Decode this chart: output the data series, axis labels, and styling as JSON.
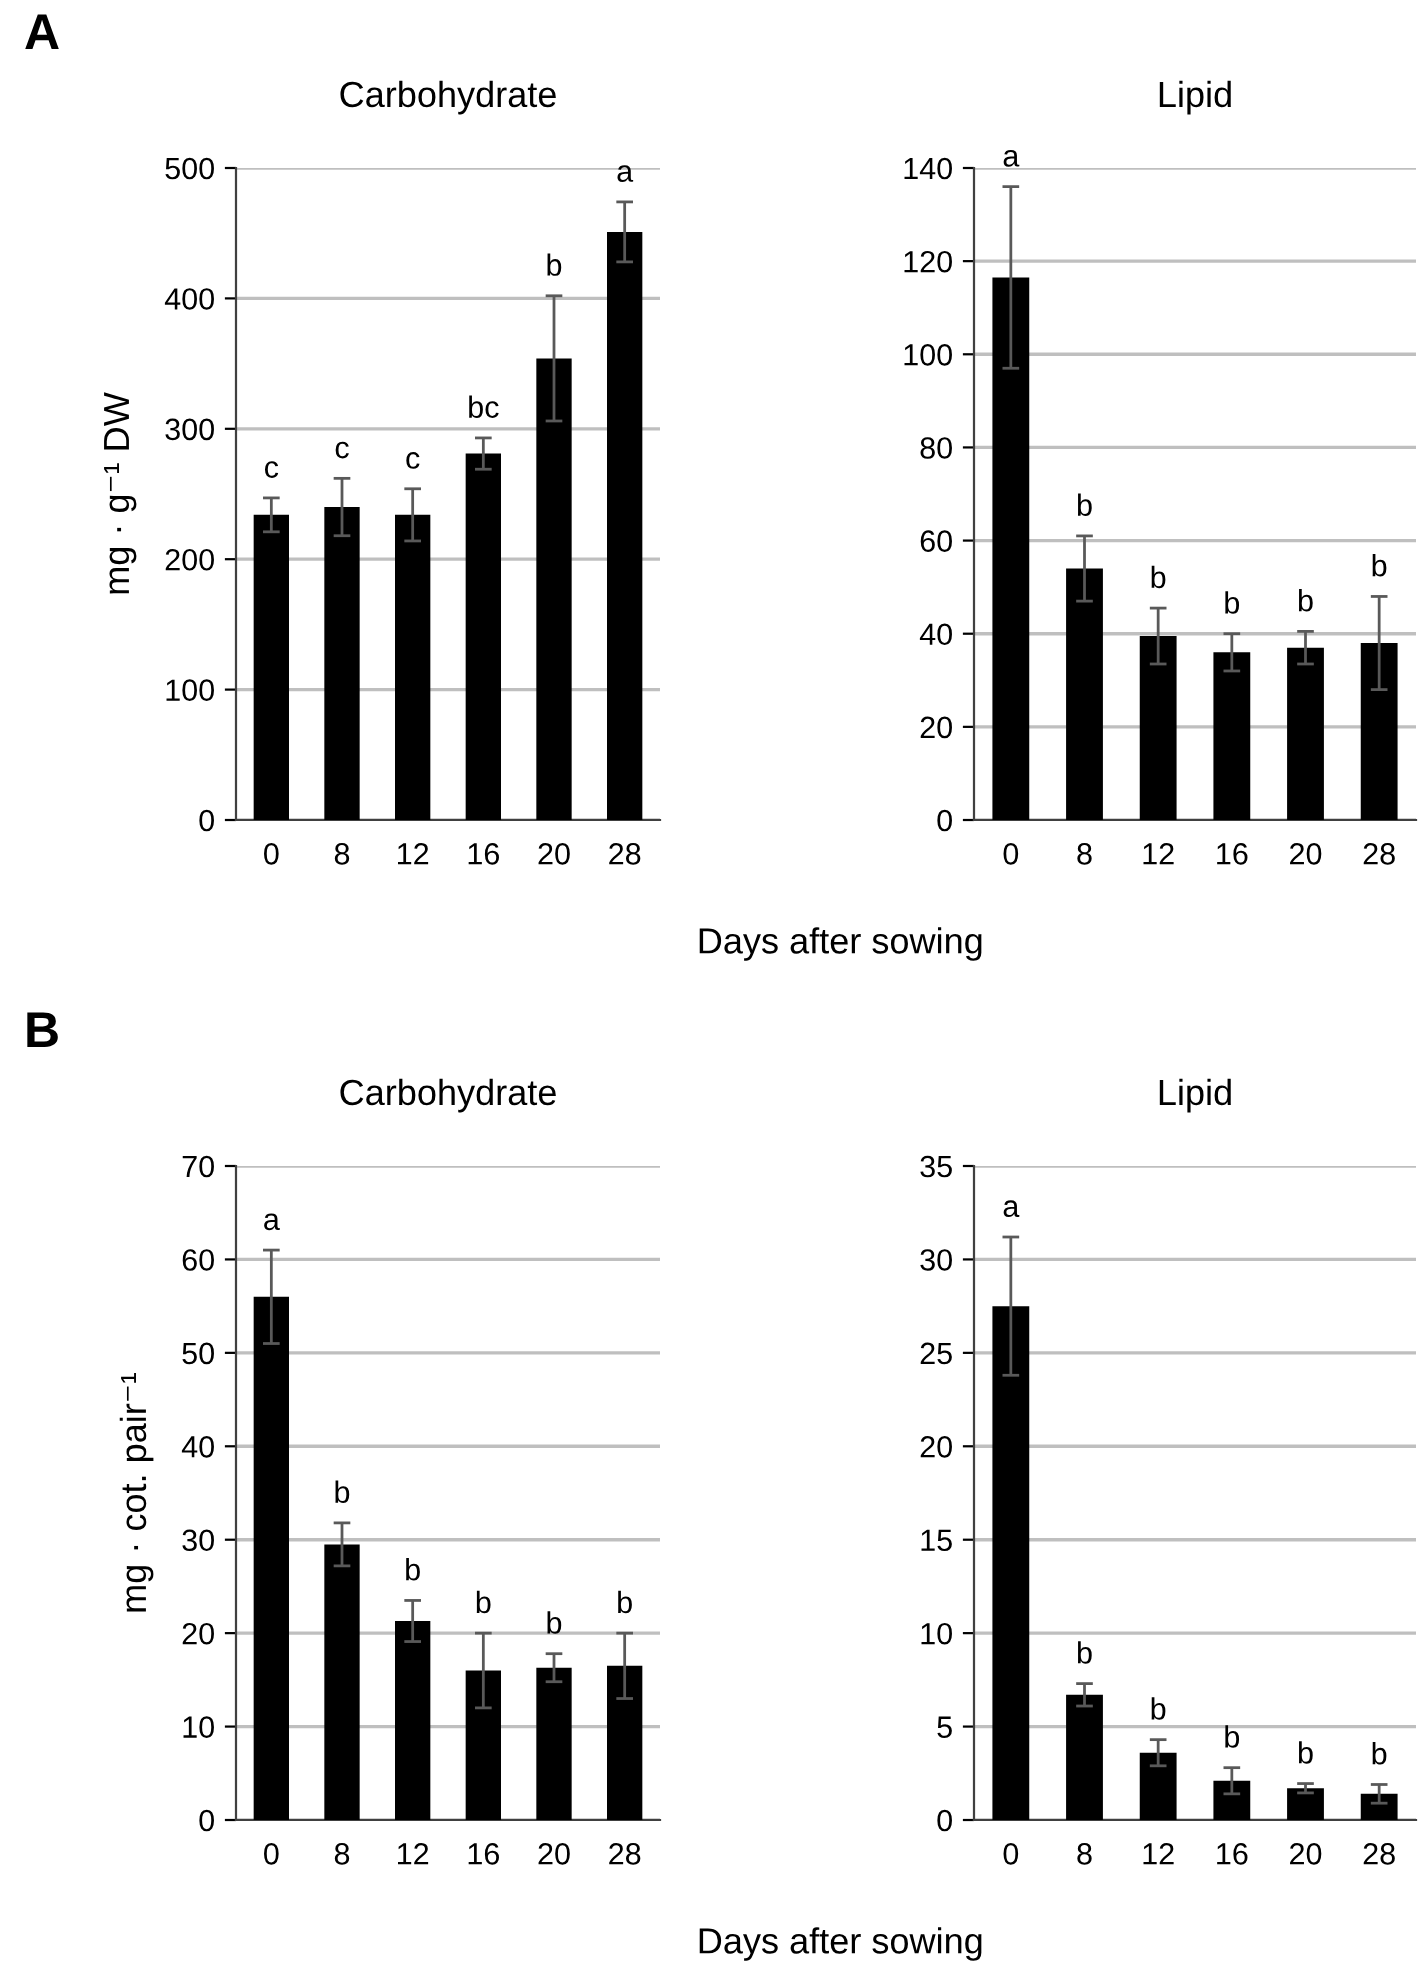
{
  "chart_data": [
    {
      "type": "bar",
      "title": "Carbohydrate",
      "ylabel": "mg · g⁻¹ DW",
      "xlabel": "Days after sowing",
      "categories": [
        "0",
        "8",
        "12",
        "16",
        "20",
        "28"
      ],
      "values": [
        234,
        240,
        234,
        281,
        354,
        451
      ],
      "errors": [
        13,
        22,
        20,
        12,
        48,
        23
      ],
      "color": "#000000",
      "ylim": [
        0,
        500
      ],
      "yticks": [
        0,
        100,
        200,
        300,
        400,
        500
      ],
      "grid": "y",
      "annotations": [
        "A",
        {
          "text": "c",
          "x": "0",
          "y": 247
        },
        {
          "text": "c",
          "x": "8",
          "y": 262
        },
        {
          "text": "c",
          "x": "12",
          "y": 254
        },
        {
          "text": "bc",
          "x": "16",
          "y": 293
        },
        {
          "text": "b",
          "x": "20",
          "y": 402
        },
        {
          "text": "a",
          "x": "28",
          "y": 474
        }
      ]
    },
    {
      "type": "bar",
      "title": "Lipid",
      "categories": [
        "0",
        "8",
        "12",
        "16",
        "20",
        "28"
      ],
      "values": [
        116.5,
        54,
        39.5,
        36,
        37,
        38
      ],
      "errors": [
        19.5,
        7,
        6,
        4,
        3.5,
        10
      ],
      "color": "#000000",
      "ylim": [
        0,
        140
      ],
      "yticks": [
        0,
        20,
        40,
        60,
        80,
        100,
        120,
        140
      ],
      "grid": "y",
      "annotations": [
        {
          "text": "a",
          "x": "0",
          "y": 136
        },
        {
          "text": "b",
          "x": "8",
          "y": 61
        },
        {
          "text": "b",
          "x": "12",
          "y": 45.5
        },
        {
          "text": "b",
          "x": "16",
          "y": 40
        },
        {
          "text": "b",
          "x": "20",
          "y": 40.5
        },
        {
          "text": "b",
          "x": "28",
          "y": 48
        }
      ]
    },
    {
      "type": "bar",
      "title": "Carbohydrate",
      "ylabel": "mg · cot. pair⁻¹",
      "xlabel": "Days after sowing",
      "categories": [
        "0",
        "8",
        "12",
        "16",
        "20",
        "28"
      ],
      "values": [
        56,
        29.5,
        21.3,
        16,
        16.3,
        16.5
      ],
      "errors": [
        5,
        2.3,
        2.2,
        4,
        1.5,
        3.5
      ],
      "color": "#000000",
      "ylim": [
        0,
        70
      ],
      "yticks": [
        0,
        10,
        20,
        30,
        40,
        50,
        60,
        70
      ],
      "grid": "y",
      "annotations": [
        "B",
        {
          "text": "a",
          "x": "0",
          "y": 61
        },
        {
          "text": "b",
          "x": "8",
          "y": 31.8
        },
        {
          "text": "b",
          "x": "12",
          "y": 23.5
        },
        {
          "text": "b",
          "x": "16",
          "y": 20
        },
        {
          "text": "b",
          "x": "20",
          "y": 17.8
        },
        {
          "text": "b",
          "x": "28",
          "y": 20
        }
      ]
    },
    {
      "type": "bar",
      "title": "Lipid",
      "categories": [
        "0",
        "8",
        "12",
        "16",
        "20",
        "28"
      ],
      "values": [
        27.5,
        6.7,
        3.6,
        2.1,
        1.7,
        1.4
      ],
      "errors": [
        3.7,
        0.6,
        0.7,
        0.7,
        0.25,
        0.5
      ],
      "color": "#000000",
      "ylim": [
        0,
        35
      ],
      "yticks": [
        0,
        5,
        10,
        15,
        20,
        25,
        30,
        35
      ],
      "grid": "y",
      "annotations": [
        {
          "text": "a",
          "x": "0",
          "y": 31.2
        },
        {
          "text": "b",
          "x": "8",
          "y": 7.3
        },
        {
          "text": "b",
          "x": "12",
          "y": 4.3
        },
        {
          "text": "b",
          "x": "16",
          "y": 2.8
        },
        {
          "text": "b",
          "x": "20",
          "y": 1.95
        },
        {
          "text": "b",
          "x": "28",
          "y": 1.9
        }
      ]
    }
  ]
}
